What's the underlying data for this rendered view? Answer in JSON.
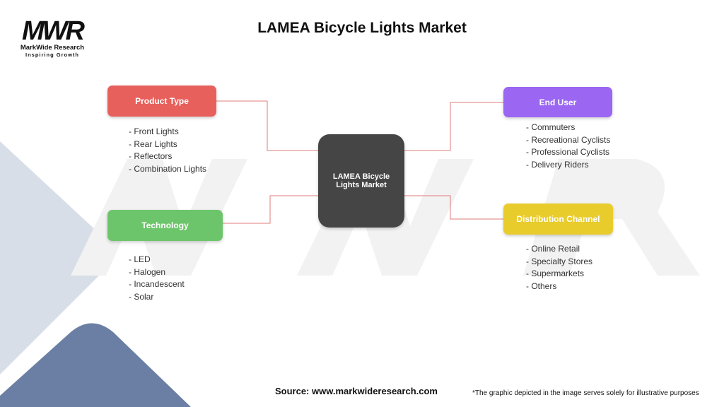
{
  "logo": {
    "mark": "MWR",
    "name": "MarkWide Research",
    "tagline": "Inspiring Growth"
  },
  "header": {
    "title": "LAMEA Bicycle Lights Market"
  },
  "center": {
    "label": "LAMEA Bicycle Lights Market"
  },
  "nodes": [
    {
      "label": "Product Type",
      "color": "#e8605c",
      "items": [
        "- Front Lights",
        "- Rear Lights",
        "- Reflectors",
        "- Combination Lights"
      ]
    },
    {
      "label": "Technology",
      "color": "#6cc56a",
      "items": [
        "- LED",
        "- Halogen",
        "- Incandescent",
        "- Solar"
      ]
    },
    {
      "label": "End User",
      "color": "#9b66f2",
      "items": [
        "- Commuters",
        "- Recreational Cyclists",
        "- Professional Cyclists",
        "- Delivery Riders"
      ]
    },
    {
      "label": "Distribution Channel",
      "color": "#e8cc2c",
      "items": [
        "- Online Retail",
        "- Specialty Stores",
        "- Supermarkets",
        "- Others"
      ]
    }
  ],
  "footer": {
    "source": "Source: www.markwideresearch.com",
    "note": "*The graphic depicted in the image serves solely for illustrative purposes"
  }
}
